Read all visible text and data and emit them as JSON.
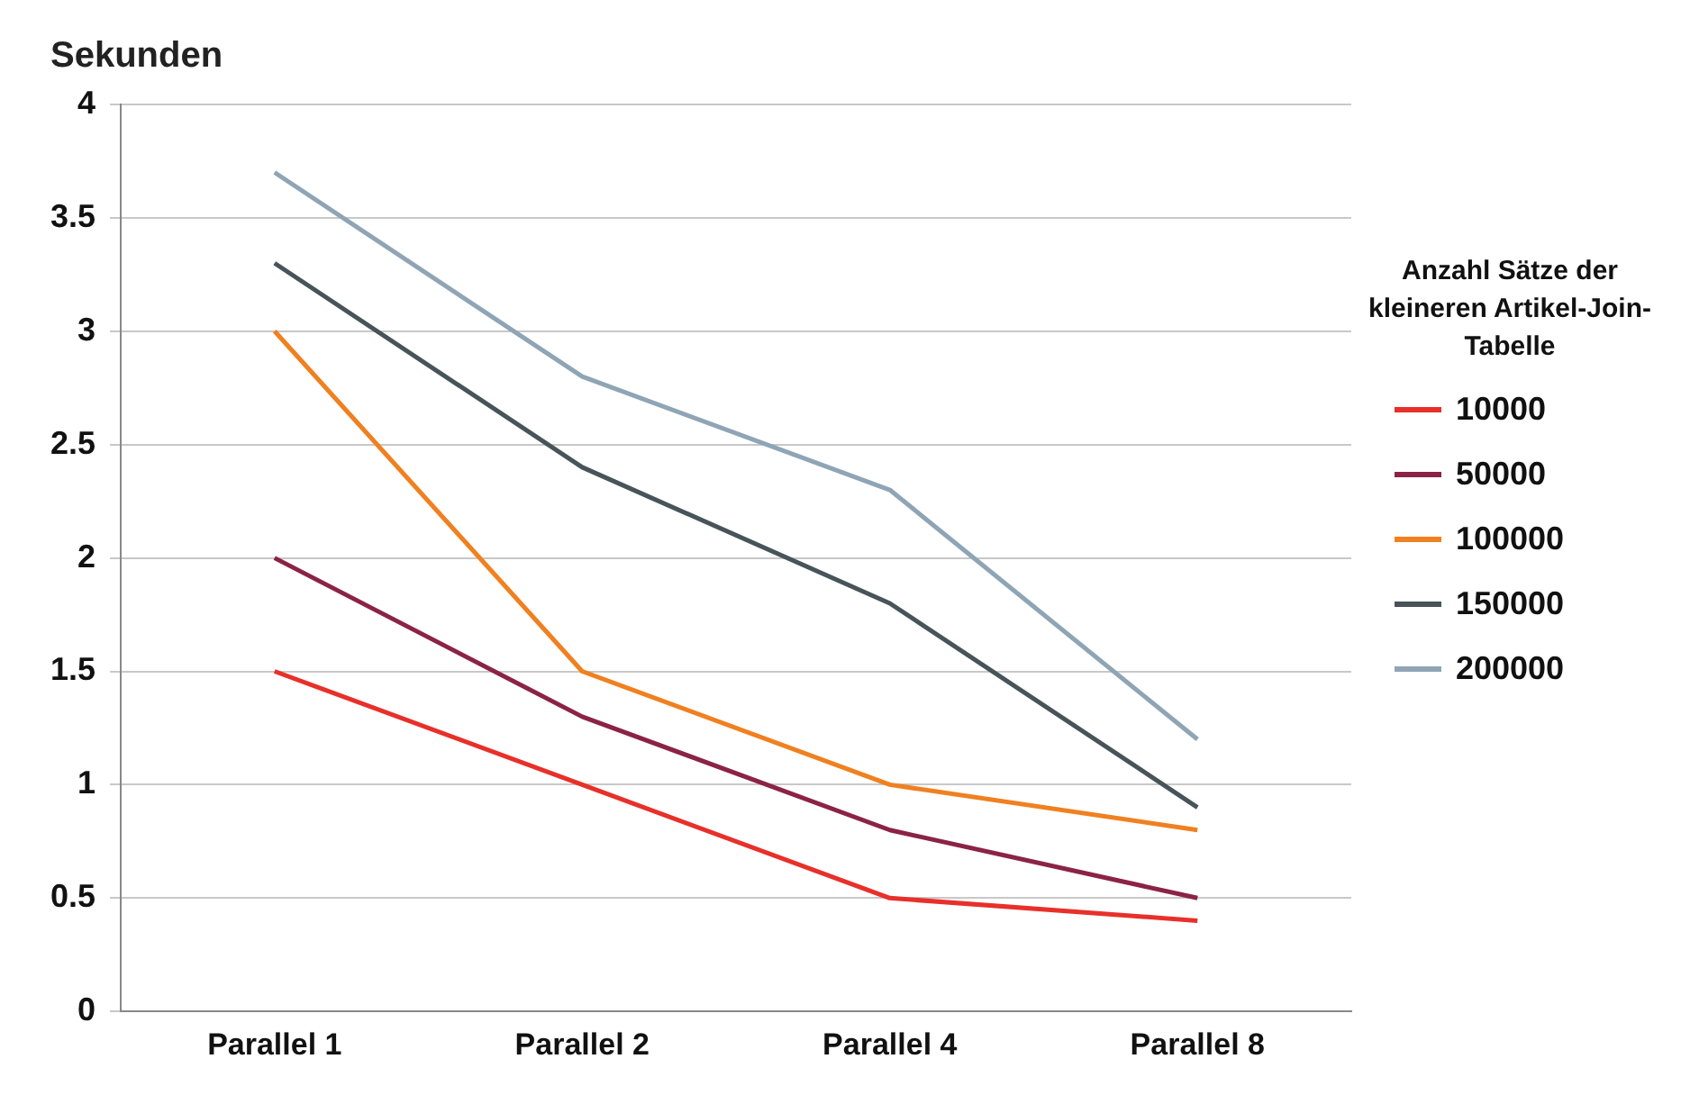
{
  "chart_data": {
    "type": "line",
    "ylabel": "Sekunden",
    "legend_title": "Anzahl Sätze der kleineren Artikel-Join-Tabelle",
    "categories": [
      "Parallel 1",
      "Parallel 2",
      "Parallel 4",
      "Parallel 8"
    ],
    "series": [
      {
        "name": "10000",
        "color": "#e8302a",
        "values": [
          1.5,
          1.0,
          0.5,
          0.4
        ]
      },
      {
        "name": "50000",
        "color": "#8b2346",
        "values": [
          2.0,
          1.3,
          0.8,
          0.5
        ]
      },
      {
        "name": "100000",
        "color": "#f08020",
        "values": [
          3.0,
          1.5,
          1.0,
          0.8
        ]
      },
      {
        "name": "150000",
        "color": "#475459",
        "values": [
          3.3,
          2.4,
          1.8,
          0.9
        ]
      },
      {
        "name": "200000",
        "color": "#8fa5b5",
        "values": [
          3.7,
          2.8,
          2.3,
          1.2
        ]
      }
    ],
    "ylim": [
      0,
      4
    ],
    "yticks": [
      0,
      0.5,
      1,
      1.5,
      2,
      2.5,
      3,
      3.5,
      4
    ],
    "grid": "y",
    "legend": "right",
    "marker": "none",
    "line_style": "solid"
  }
}
